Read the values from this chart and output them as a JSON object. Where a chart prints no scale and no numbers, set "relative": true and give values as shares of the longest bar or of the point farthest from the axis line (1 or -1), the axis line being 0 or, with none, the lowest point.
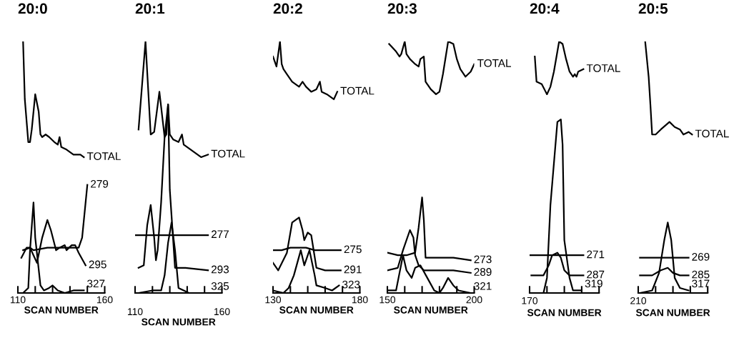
{
  "chart_data": [
    {
      "type": "line",
      "title": "20:0",
      "xlabel": "SCAN NUMBER",
      "relative": true,
      "xlim": [
        110,
        160
      ],
      "xticks": [
        110,
        {
          "value": 120,
          "label": null
        },
        {
          "value": 130,
          "label": null
        },
        {
          "value": 140,
          "label": null
        },
        {
          "value": 150,
          "label": null
        },
        160
      ],
      "series": [
        {
          "name": "TOTAL",
          "color": "#000000",
          "x": [
            113,
            114,
            116,
            117,
            118,
            120,
            122,
            123,
            124,
            126,
            128,
            131,
            133,
            134,
            135,
            138,
            142,
            146,
            148
          ],
          "values": [
            1.0,
            0.77,
            0.6,
            0.6,
            0.65,
            0.79,
            0.72,
            0.63,
            0.62,
            0.63,
            0.62,
            0.6,
            0.59,
            0.62,
            0.58,
            0.57,
            0.55,
            0.55,
            0.54
          ]
        },
        {
          "name": "279",
          "color": "#000000",
          "x": [
            112,
            115,
            117,
            119,
            127,
            136,
            145,
            147,
            149,
            150
          ],
          "values": [
            0.14,
            0.18,
            0.18,
            0.17,
            0.18,
            0.18,
            0.18,
            0.22,
            0.36,
            0.43
          ]
        },
        {
          "name": "295",
          "color": "#000000",
          "x": [
            113,
            117,
            119,
            121,
            124,
            127,
            129,
            132,
            134,
            137,
            138,
            141,
            143,
            145,
            149
          ],
          "values": [
            0.17,
            0.18,
            0.15,
            0.12,
            0.22,
            0.29,
            0.25,
            0.17,
            0.18,
            0.19,
            0.17,
            0.19,
            0.19,
            0.16,
            0.11
          ]
        },
        {
          "name": "327",
          "color": "#000000",
          "x": [
            113,
            116,
            117,
            119,
            120,
            123,
            125,
            128,
            130,
            133,
            137,
            142,
            148
          ],
          "values": [
            0.0,
            0.02,
            0.17,
            0.36,
            0.22,
            0.03,
            0.01,
            0.02,
            0.03,
            0.01,
            0.0,
            0.01,
            0.01
          ]
        }
      ]
    },
    {
      "type": "line",
      "title": "20:1",
      "xlabel": "SCAN NUMBER",
      "relative": true,
      "xlim": [
        110,
        160
      ],
      "xticks": [
        110,
        {
          "value": 120,
          "label": null
        },
        {
          "value": 130,
          "label": null
        },
        {
          "value": 140,
          "label": null
        },
        {
          "value": 150,
          "label": null
        },
        160
      ],
      "series": [
        {
          "name": "TOTAL",
          "color": "#000000",
          "x": [
            112,
            116,
            119,
            121,
            124,
            127,
            128,
            129,
            130,
            132,
            135,
            137,
            138,
            142,
            146,
            148,
            152
          ],
          "values": [
            0.65,
            1.0,
            0.63,
            0.64,
            0.8,
            0.62,
            0.63,
            0.75,
            0.63,
            0.61,
            0.6,
            0.63,
            0.59,
            0.57,
            0.55,
            0.54,
            0.55
          ]
        },
        {
          "name": "277",
          "color": "#000000",
          "x": [
            110,
            115,
            121,
            128,
            136,
            145,
            152
          ],
          "values": [
            0.23,
            0.23,
            0.23,
            0.23,
            0.23,
            0.23,
            0.23
          ]
        },
        {
          "name": "293",
          "color": "#000000",
          "x": [
            112,
            115,
            117,
            119,
            121,
            122,
            123,
            125,
            127,
            129,
            130,
            133,
            139,
            152
          ],
          "values": [
            0.1,
            0.11,
            0.27,
            0.35,
            0.22,
            0.13,
            0.17,
            0.36,
            0.62,
            0.75,
            0.41,
            0.1,
            0.1,
            0.09
          ]
        },
        {
          "name": "325",
          "color": "#000000",
          "x": [
            112,
            120,
            125,
            127,
            129,
            131,
            133,
            135,
            141,
            152
          ],
          "values": [
            0.0,
            0.01,
            0.01,
            0.07,
            0.2,
            0.28,
            0.17,
            0.02,
            0.0,
            0.0
          ]
        }
      ]
    },
    {
      "type": "line",
      "title": "20:2",
      "xlabel": "SCAN NUMBER",
      "relative": true,
      "xlim": [
        130,
        180
      ],
      "xticks": [
        130,
        {
          "value": 140,
          "label": null
        },
        {
          "value": 150,
          "label": null
        },
        {
          "value": 160,
          "label": null
        },
        {
          "value": 170,
          "label": null
        },
        180
      ],
      "series": [
        {
          "name": "TOTAL",
          "color": "#000000",
          "x": [
            130,
            131,
            132,
            134,
            135,
            136,
            138,
            141,
            145,
            147,
            149,
            152,
            155,
            157,
            158,
            161,
            165,
            167
          ],
          "values": [
            0.94,
            0.92,
            0.9,
            1.0,
            0.91,
            0.89,
            0.87,
            0.84,
            0.82,
            0.84,
            0.82,
            0.8,
            0.81,
            0.84,
            0.8,
            0.79,
            0.77,
            0.8
          ]
        },
        {
          "name": "275",
          "color": "#000000",
          "x": [
            130,
            135,
            140,
            149,
            154,
            161,
            169
          ],
          "values": [
            0.17,
            0.17,
            0.18,
            0.18,
            0.17,
            0.17,
            0.17
          ]
        },
        {
          "name": "291",
          "color": "#000000",
          "x": [
            130,
            133,
            138,
            141,
            145,
            147,
            148,
            150,
            152,
            155,
            160,
            169
          ],
          "values": [
            0.12,
            0.09,
            0.16,
            0.28,
            0.3,
            0.25,
            0.21,
            0.24,
            0.23,
            0.1,
            0.09,
            0.09
          ]
        },
        {
          "name": "323",
          "color": "#000000",
          "x": [
            130,
            136,
            139,
            142,
            146,
            148,
            151,
            154,
            155,
            160,
            164,
            168
          ],
          "values": [
            0.01,
            0.0,
            0.02,
            0.07,
            0.17,
            0.11,
            0.17,
            0.07,
            0.03,
            0.02,
            0.01,
            0.03
          ]
        }
      ]
    },
    {
      "type": "line",
      "title": "20:3",
      "xlabel": "SCAN NUMBER",
      "relative": true,
      "xlim": [
        150,
        200
      ],
      "xticks": [
        150,
        {
          "value": 160,
          "label": null
        },
        {
          "value": 170,
          "label": null
        },
        {
          "value": 180,
          "label": null
        },
        {
          "value": 190,
          "label": null
        },
        200
      ],
      "series": [
        {
          "name": "TOTAL",
          "color": "#000000",
          "x": [
            151,
            155,
            157,
            158,
            160,
            161,
            163,
            166,
            168,
            169,
            171,
            172,
            175,
            178,
            180,
            182,
            185,
            188,
            190,
            192,
            195,
            198,
            200
          ],
          "values": [
            0.99,
            0.96,
            0.94,
            0.95,
            1.0,
            0.95,
            0.93,
            0.91,
            0.9,
            0.93,
            0.94,
            0.84,
            0.81,
            0.79,
            0.8,
            0.87,
            1.0,
            0.99,
            0.93,
            0.89,
            0.86,
            0.88,
            0.91
          ]
        },
        {
          "name": "273",
          "color": "#000000",
          "x": [
            150,
            156,
            161,
            166,
            168,
            170,
            171,
            172,
            177,
            188,
            198
          ],
          "values": [
            0.16,
            0.15,
            0.15,
            0.16,
            0.26,
            0.38,
            0.29,
            0.14,
            0.14,
            0.14,
            0.13
          ]
        },
        {
          "name": "289",
          "color": "#000000",
          "x": [
            150,
            156,
            159,
            163,
            165,
            166,
            168,
            171,
            177,
            188,
            198
          ],
          "values": [
            0.09,
            0.1,
            0.17,
            0.25,
            0.22,
            0.15,
            0.11,
            0.09,
            0.09,
            0.09,
            0.08
          ]
        },
        {
          "name": "321",
          "color": "#000000",
          "x": [
            150,
            155,
            157,
            159,
            161,
            164,
            166,
            169,
            173,
            177,
            180,
            182,
            185,
            188,
            191,
            198
          ],
          "values": [
            0.01,
            0.01,
            0.08,
            0.15,
            0.09,
            0.06,
            0.1,
            0.11,
            0.06,
            0.01,
            0.0,
            0.02,
            0.06,
            0.03,
            0.01,
            0.0
          ]
        }
      ]
    },
    {
      "type": "line",
      "title": "20:4",
      "xlabel": "SCAN NUMBER",
      "relative": true,
      "annotations": [
        "170"
      ],
      "categories": [
        null,
        null,
        null,
        null,
        null,
        null,
        null,
        null,
        null,
        null,
        null,
        null,
        null,
        null,
        null,
        null,
        null,
        null,
        null,
        null,
        null,
        null,
        null,
        null,
        null,
        null,
        null,
        null,
        null,
        null,
        null,
        null,
        null,
        null,
        null,
        null,
        null,
        null,
        null,
        null,
        null
      ],
      "series": [
        {
          "name": "TOTAL",
          "color": "#000000",
          "values": [
            null,
            null,
            null,
            0.94,
            0.84,
            null,
            null,
            0.83,
            null,
            null,
            0.79,
            null,
            0.82,
            null,
            0.88,
            null,
            null,
            1.0,
            null,
            0.99,
            null,
            0.93,
            null,
            0.88,
            null,
            0.86,
            0.87,
            0.86,
            0.88,
            null,
            null,
            0.89,
            null,
            null,
            null,
            null,
            null,
            null,
            null,
            null,
            null
          ]
        },
        {
          "name": "271",
          "color": "#000000",
          "values": [
            0.15,
            null,
            null,
            null,
            null,
            null,
            null,
            null,
            0.15,
            null,
            null,
            null,
            null,
            null,
            null,
            null,
            0.15,
            null,
            null,
            null,
            null,
            null,
            null,
            0.15,
            null,
            null,
            null,
            null,
            null,
            null,
            null,
            0.15,
            null,
            null,
            null,
            null,
            null,
            null,
            null,
            null,
            null
          ]
        },
        {
          "name": "287",
          "color": "#000000",
          "values": [
            null,
            0.07,
            null,
            null,
            null,
            null,
            null,
            null,
            0.07,
            null,
            null,
            0.11,
            null,
            0.15,
            null,
            null,
            0.16,
            null,
            0.14,
            null,
            0.09,
            null,
            null,
            0.07,
            null,
            null,
            null,
            null,
            null,
            null,
            null,
            0.07,
            null,
            null,
            null,
            null,
            null,
            null,
            null,
            null,
            null
          ]
        },
        {
          "name": "319",
          "color": "#000000",
          "values": [
            null,
            0.0,
            null,
            null,
            null,
            null,
            null,
            null,
            0.0,
            null,
            0.06,
            null,
            0.35,
            null,
            null,
            null,
            0.68,
            null,
            0.69,
            0.59,
            0.21,
            null,
            null,
            0.06,
            null,
            0.01,
            null,
            null,
            null,
            null,
            0.01,
            null,
            null,
            null,
            null,
            null,
            null,
            null,
            null,
            null,
            null
          ]
        }
      ]
    },
    {
      "type": "line",
      "title": "20:5",
      "xlabel": "SCAN NUMBER",
      "relative": true,
      "annotations": [
        "210"
      ],
      "categories": [
        null,
        null,
        null,
        null,
        null,
        null,
        null,
        null,
        null,
        null,
        null,
        null,
        null,
        null,
        null,
        null,
        null,
        null,
        null,
        null,
        null,
        null,
        null,
        null,
        null,
        null,
        null,
        null,
        null,
        null,
        null,
        null,
        null,
        null,
        null,
        null,
        null,
        null,
        null,
        null,
        null
      ],
      "series": [
        {
          "name": "TOTAL",
          "color": "#000000",
          "values": [
            null,
            null,
            null,
            null,
            1.0,
            null,
            0.86,
            0.75,
            0.63,
            null,
            0.63,
            null,
            null,
            0.65,
            null,
            null,
            null,
            null,
            0.68,
            null,
            null,
            0.66,
            null,
            null,
            0.65,
            null,
            0.63,
            null,
            null,
            0.64,
            null,
            0.63,
            null,
            null,
            null,
            null,
            null,
            null,
            null,
            null,
            null
          ]
        },
        {
          "name": "269",
          "color": "#000000",
          "values": [
            null,
            0.14,
            null,
            null,
            null,
            null,
            null,
            null,
            0.14,
            null,
            null,
            null,
            null,
            null,
            null,
            null,
            null,
            0.14,
            null,
            null,
            null,
            null,
            null,
            null,
            null,
            0.14,
            null,
            null,
            null,
            0.14,
            null,
            null,
            null,
            null,
            null,
            null,
            null,
            null,
            null,
            null,
            null
          ]
        },
        {
          "name": "285",
          "color": "#000000",
          "values": [
            null,
            0.07,
            null,
            null,
            null,
            null,
            null,
            null,
            0.07,
            null,
            null,
            null,
            null,
            0.09,
            null,
            null,
            null,
            0.1,
            null,
            null,
            0.08,
            null,
            null,
            null,
            0.07,
            null,
            null,
            null,
            null,
            0.07,
            null,
            null,
            null,
            null,
            null,
            null,
            null,
            null,
            null,
            null,
            null
          ]
        },
        {
          "name": "317",
          "color": "#000000",
          "values": [
            null,
            0.0,
            null,
            null,
            null,
            null,
            null,
            null,
            0.01,
            null,
            null,
            null,
            0.08,
            null,
            null,
            0.21,
            null,
            0.28,
            null,
            0.21,
            null,
            0.06,
            null,
            null,
            0.02,
            null,
            null,
            null,
            null,
            0.01,
            null,
            null,
            null,
            null,
            null,
            null,
            null,
            null,
            null,
            null,
            null
          ]
        }
      ]
    }
  ]
}
